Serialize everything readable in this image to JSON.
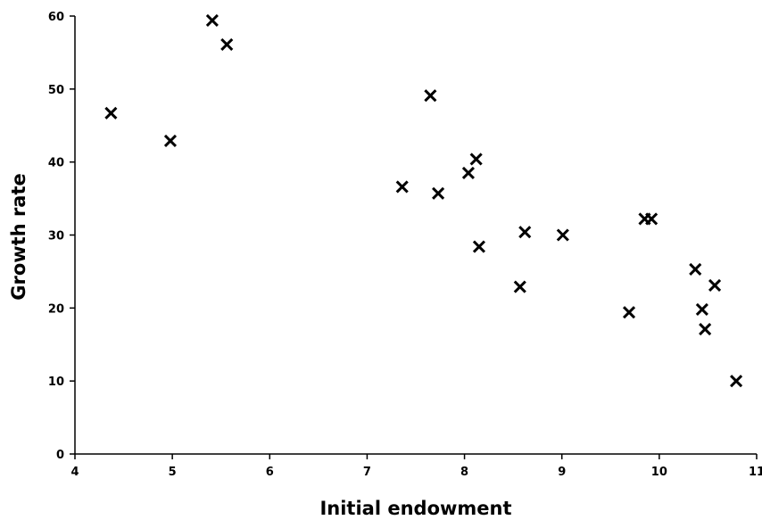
{
  "chart_data": {
    "type": "scatter",
    "title": "",
    "xlabel": "Initial endowment",
    "ylabel": "Growth rate",
    "xlim": [
      4,
      11
    ],
    "ylim": [
      0,
      60
    ],
    "x_ticks": [
      "4",
      "5",
      "6",
      "7",
      "8",
      "9",
      "10",
      "11"
    ],
    "y_ticks": [
      "0",
      "10",
      "20",
      "30",
      "40",
      "50",
      "60"
    ],
    "grid": false,
    "legend": "none",
    "marker": "x",
    "colors": {
      "marker": "#000000",
      "axis": "#000000"
    },
    "points": [
      {
        "x": 4.37,
        "y": 46.7
      },
      {
        "x": 4.98,
        "y": 42.9
      },
      {
        "x": 5.41,
        "y": 59.4
      },
      {
        "x": 5.56,
        "y": 56.1
      },
      {
        "x": 7.36,
        "y": 36.6
      },
      {
        "x": 7.65,
        "y": 49.1
      },
      {
        "x": 7.73,
        "y": 35.7
      },
      {
        "x": 8.04,
        "y": 38.5
      },
      {
        "x": 8.12,
        "y": 40.4
      },
      {
        "x": 8.15,
        "y": 28.4
      },
      {
        "x": 8.57,
        "y": 22.9
      },
      {
        "x": 8.62,
        "y": 30.4
      },
      {
        "x": 9.01,
        "y": 30.0
      },
      {
        "x": 9.69,
        "y": 19.4
      },
      {
        "x": 9.85,
        "y": 32.2
      },
      {
        "x": 9.92,
        "y": 32.2
      },
      {
        "x": 10.37,
        "y": 25.3
      },
      {
        "x": 10.44,
        "y": 19.8
      },
      {
        "x": 10.47,
        "y": 17.1
      },
      {
        "x": 10.57,
        "y": 23.1
      },
      {
        "x": 10.79,
        "y": 10.0
      }
    ]
  }
}
